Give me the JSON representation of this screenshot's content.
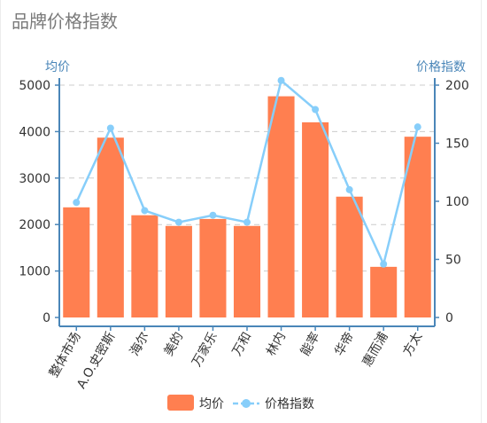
{
  "title": "品牌价格指数",
  "colors": {
    "bar": "#FF7F50",
    "line": "#87CEFA",
    "axis": "#4A86B8",
    "grid": "#cccccc",
    "text": "#333333"
  },
  "chart_data": {
    "type": "bar",
    "categories": [
      "整体市场",
      "A.O.史密斯",
      "海尔",
      "美的",
      "万家乐",
      "万和",
      "林内",
      "能率",
      "华帝",
      "惠而浦",
      "方太"
    ],
    "series": [
      {
        "name": "均价",
        "type": "bar",
        "axis": "left",
        "values": [
          2370,
          3870,
          2200,
          1970,
          2120,
          1970,
          4760,
          4200,
          2600,
          1090,
          3890
        ]
      },
      {
        "name": "价格指数",
        "type": "line",
        "axis": "right",
        "values": [
          99,
          163,
          92,
          82,
          88,
          82,
          204,
          179,
          110,
          46,
          164
        ]
      }
    ],
    "ylabel_left": "均价",
    "ylabel_right": "价格指数",
    "ylim_left": [
      0,
      5000
    ],
    "ylim_right": [
      0,
      200
    ],
    "yticks_left": [
      "0",
      "1000",
      "2000",
      "3000",
      "4000",
      "5000"
    ],
    "yticks_right": [
      "0",
      "50",
      "100",
      "150",
      "200"
    ],
    "grid": true,
    "legend": {
      "position": "bottom",
      "items": [
        "均价",
        "价格指数"
      ]
    }
  }
}
